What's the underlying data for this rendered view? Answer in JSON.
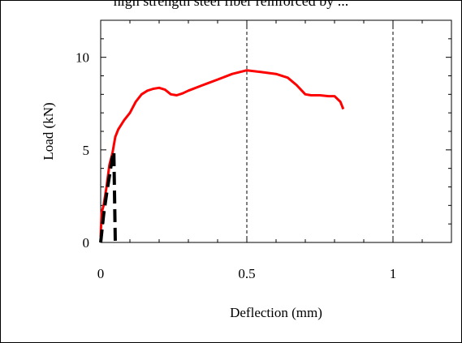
{
  "caption_top": "high strength steel fiber reinforced  by  ...",
  "chart_data": {
    "type": "line",
    "xlabel": "Deflection (mm)",
    "ylabel": "Load (kN)",
    "xlim": [
      0,
      1.2
    ],
    "ylim": [
      0,
      12
    ],
    "xticks": [
      0,
      0.5,
      1
    ],
    "xtick_labels": [
      "0",
      "0.5",
      "1"
    ],
    "yticks": [
      0,
      5,
      10
    ],
    "ytick_labels": [
      "0",
      "5",
      "10"
    ],
    "grid": "vertical dashed reference lines at x = 0.5 and x = 1",
    "legend": "none",
    "series": [
      {
        "color": "#ff0000",
        "style": "solid",
        "x": [
          0.0,
          0.003,
          0.01,
          0.02,
          0.03,
          0.04,
          0.05,
          0.06,
          0.08,
          0.1,
          0.12,
          0.14,
          0.16,
          0.18,
          0.2,
          0.22,
          0.24,
          0.26,
          0.28,
          0.3,
          0.35,
          0.4,
          0.45,
          0.5,
          0.55,
          0.6,
          0.64,
          0.67,
          0.7,
          0.72,
          0.75,
          0.78,
          0.8,
          0.82,
          0.83
        ],
        "y": [
          0.3,
          1.6,
          2.0,
          3.0,
          4.2,
          4.8,
          5.7,
          6.1,
          6.6,
          7.0,
          7.6,
          8.0,
          8.2,
          8.3,
          8.35,
          8.25,
          8.0,
          7.95,
          8.05,
          8.2,
          8.5,
          8.8,
          9.1,
          9.3,
          9.2,
          9.1,
          8.9,
          8.5,
          8.0,
          7.95,
          7.95,
          7.9,
          7.9,
          7.6,
          7.2
        ]
      },
      {
        "color": "#000000",
        "style": "dashed",
        "x": [
          0.0,
          0.01,
          0.02,
          0.03,
          0.035,
          0.04,
          0.045,
          0.05
        ],
        "y": [
          0.0,
          1.5,
          2.6,
          3.6,
          4.1,
          4.6,
          4.9,
          0.0
        ]
      }
    ]
  }
}
